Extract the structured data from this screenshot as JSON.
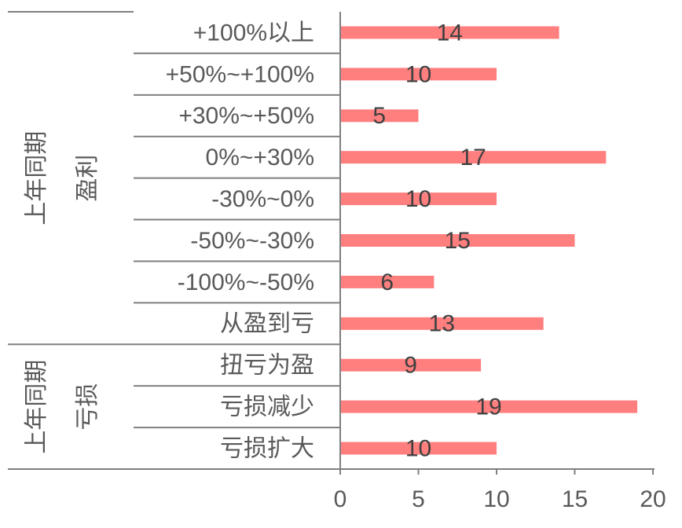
{
  "chart_data": {
    "type": "bar",
    "orientation": "horizontal",
    "color": "#ff7f7f",
    "groups": [
      {
        "labels": [
          "上年同期",
          "盈利"
        ],
        "categories": [
          "+100%以上",
          "+50%~+100%",
          "+30%~+50%",
          "0%~+30%",
          "-30%~0%",
          "-50%~-30%",
          "-100%~-50%",
          "从盈到亏"
        ],
        "values": [
          14,
          10,
          5,
          17,
          10,
          15,
          6,
          13
        ]
      },
      {
        "labels": [
          "上年同期",
          "亏损"
        ],
        "categories": [
          "扭亏为盈",
          "亏损减少",
          "亏损扩大"
        ],
        "values": [
          9,
          19,
          10
        ]
      }
    ],
    "xlim": [
      0,
      20
    ],
    "xticks": [
      0,
      5,
      10,
      15,
      20
    ]
  }
}
